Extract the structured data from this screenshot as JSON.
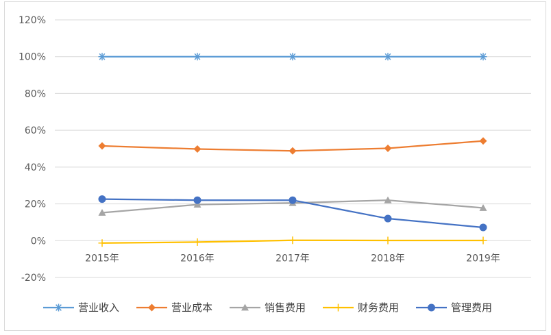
{
  "chart_data": {
    "type": "line",
    "title": "",
    "xlabel": "",
    "ylabel": "",
    "categories": [
      "2015年",
      "2016年",
      "2017年",
      "2018年",
      "2019年"
    ],
    "ylim": [
      -20,
      120
    ],
    "yticks": [
      -20,
      0,
      20,
      40,
      60,
      80,
      100,
      120
    ],
    "ytick_labels": [
      "-20%",
      "0%",
      "20%",
      "40%",
      "60%",
      "80%",
      "100%",
      "120%"
    ],
    "grid": true,
    "legend_position": "bottom",
    "series": [
      {
        "name": "营业收入",
        "color": "#5b9bd5",
        "marker": "asterisk",
        "values": [
          100,
          100,
          100,
          100,
          100
        ]
      },
      {
        "name": "营业成本",
        "color": "#ed7d31",
        "marker": "diamond",
        "values": [
          51.5,
          49.8,
          48.8,
          50.2,
          54.2
        ]
      },
      {
        "name": "销售费用",
        "color": "#a5a5a5",
        "marker": "triangle",
        "values": [
          15.2,
          19.6,
          20.5,
          22.0,
          17.8
        ]
      },
      {
        "name": "财务费用",
        "color": "#ffc000",
        "marker": "plus",
        "values": [
          -1.3,
          -0.8,
          0.2,
          0.1,
          0.1
        ]
      },
      {
        "name": "管理费用",
        "color": "#4472c4",
        "marker": "circle",
        "values": [
          22.6,
          22.0,
          22.0,
          12.0,
          7.2
        ]
      }
    ]
  }
}
